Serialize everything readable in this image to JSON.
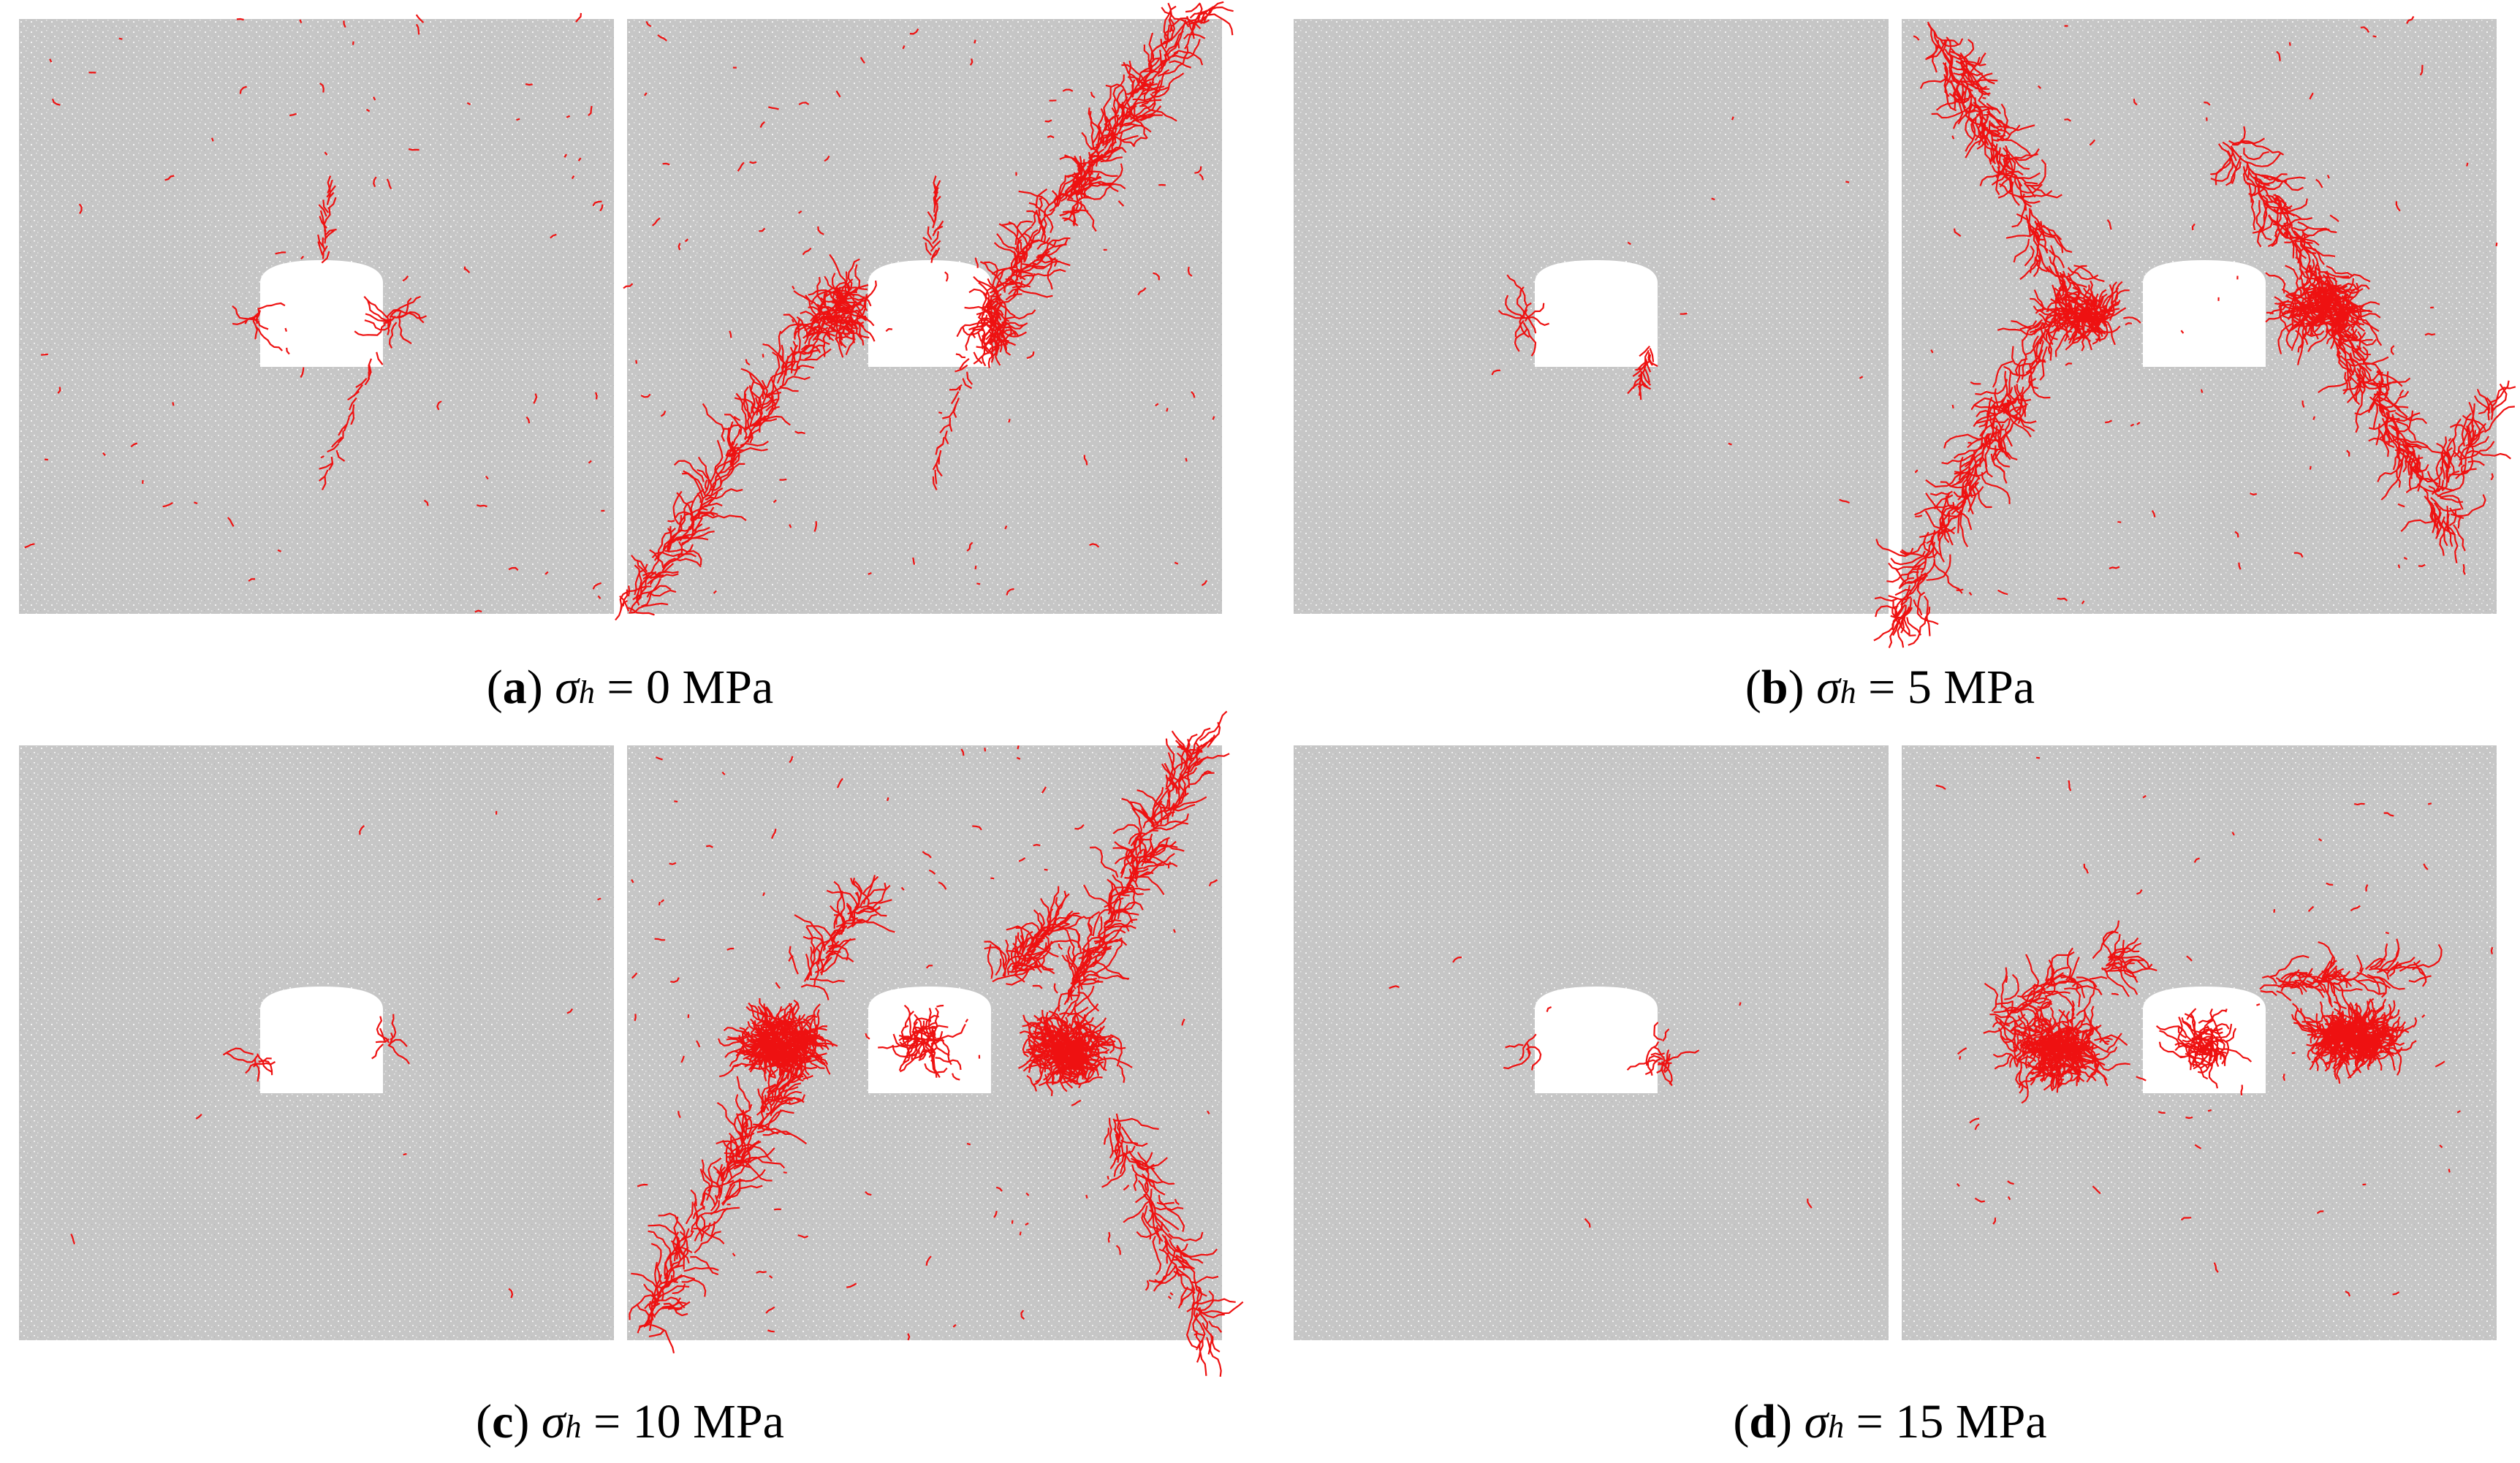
{
  "panels": [
    {
      "caption": [
        {
          "text": "("
        },
        {
          "text": "a",
          "style": "bold"
        },
        {
          "text": ") "
        },
        {
          "text": "σ",
          "style": "italic"
        },
        {
          "text": "h",
          "style": "sub"
        },
        {
          "text": " = 0 MPa"
        }
      ]
    },
    {
      "caption": [
        {
          "text": "("
        },
        {
          "text": "b",
          "style": "bold"
        },
        {
          "text": ") "
        },
        {
          "text": "σ",
          "style": "italic"
        },
        {
          "text": "h",
          "style": "sub"
        },
        {
          "text": " = 5 MPa"
        }
      ]
    },
    {
      "caption": [
        {
          "text": "("
        },
        {
          "text": "c",
          "style": "bold"
        },
        {
          "text": ") "
        },
        {
          "text": "σ",
          "style": "italic"
        },
        {
          "text": "h",
          "style": "sub"
        },
        {
          "text": " = 10 MPa"
        }
      ]
    },
    {
      "caption": [
        {
          "text": "("
        },
        {
          "text": "d",
          "style": "bold"
        },
        {
          "text": ") "
        },
        {
          "text": "σ",
          "style": "italic"
        },
        {
          "text": "h",
          "style": "sub"
        },
        {
          "text": " = 15 MPa"
        }
      ]
    }
  ]
}
